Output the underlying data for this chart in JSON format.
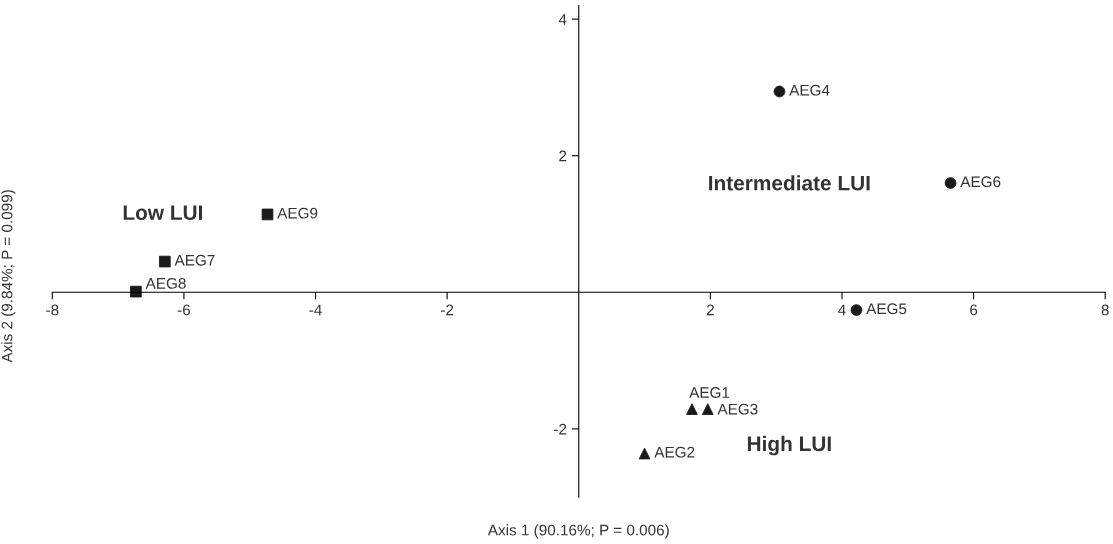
{
  "chart_data": {
    "type": "scatter",
    "xlabel": "Axis 1 (90.16%; P = 0.006)",
    "ylabel": "Axis 2 (9.84%; P = 0.099)",
    "xlim": [
      -8,
      8
    ],
    "ylim": [
      -3,
      4.2
    ],
    "xticks": [
      -8,
      -6,
      -4,
      -2,
      2,
      4,
      6,
      8
    ],
    "yticks": [
      -2,
      2,
      4
    ],
    "grid": false,
    "series": [
      {
        "color": "#1a1a1a",
        "marker": "circle",
        "x": [
          3.05,
          5.65,
          4.22
        ],
        "values": [
          2.94,
          1.6,
          -0.26
        ],
        "value_labels": [
          "AEG4",
          "AEG6",
          "AEG5"
        ]
      },
      {
        "color": "#1a1a1a",
        "marker": "square",
        "x": [
          -4.73,
          -6.29,
          -6.73
        ],
        "values": [
          1.14,
          0.45,
          0.01
        ],
        "value_labels": [
          "AEG9",
          "AEG7",
          "AEG8"
        ]
      },
      {
        "color": "#1a1a1a",
        "marker": "triangle",
        "x": [
          1.72,
          1.96,
          1.0
        ],
        "values": [
          -1.71,
          -1.71,
          -2.36
        ],
        "value_labels": [
          "AEG1",
          "AEG3",
          "AEG2"
        ]
      }
    ],
    "annotations": [
      "Low LUI",
      "Intermediate LUI",
      "High LUI"
    ]
  }
}
